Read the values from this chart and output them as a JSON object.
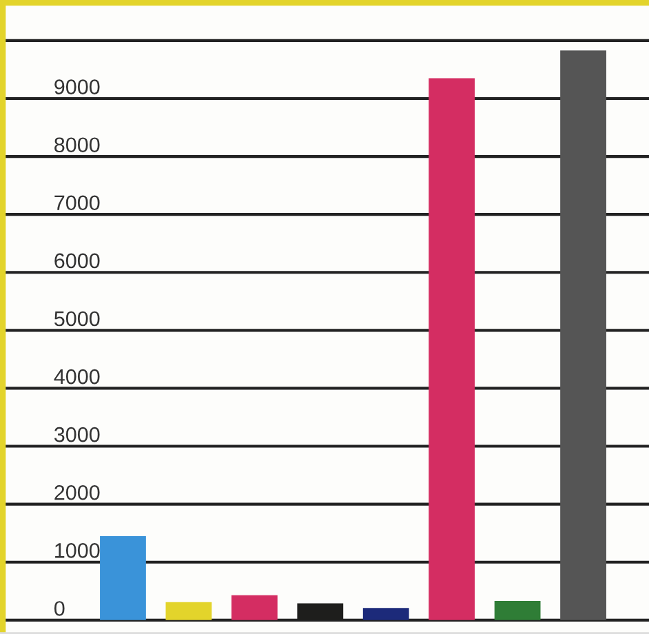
{
  "chart_data": {
    "type": "bar",
    "categories": [
      null,
      null,
      null,
      null,
      null,
      null,
      null,
      null
    ],
    "values": [
      1450,
      310,
      430,
      290,
      210,
      9350,
      330,
      9830
    ],
    "colors": [
      "#3a93d9",
      "#e3d42b",
      "#d42d62",
      "#1e1e1c",
      "#1c2a7a",
      "#d42d62",
      "#2f7d36",
      "#555555"
    ],
    "ylim": [
      -240,
      10700
    ],
    "yticks": [
      0,
      1000,
      2000,
      3000,
      4000,
      5000,
      6000,
      7000,
      8000,
      9000,
      {
        "value": 10000,
        "label": null
      }
    ],
    "grid": "y"
  }
}
